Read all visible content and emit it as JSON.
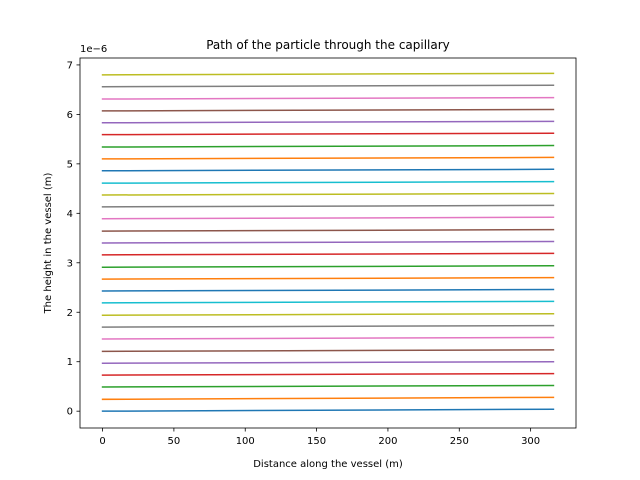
{
  "chart_data": {
    "type": "line",
    "title": "Path of the particle through the capillary",
    "xlabel": "Distance along the vessel (m)",
    "ylabel": "The height in the vessel (m)",
    "y_offset_label": "1e−6",
    "xlim": [
      -15.8,
      331.8
    ],
    "ylim": [
      -0.34,
      7.14
    ],
    "y_unit_scale": 1e-06,
    "x_ticks": [
      0,
      50,
      100,
      150,
      200,
      250,
      300
    ],
    "x_tick_labels": [
      "0",
      "50",
      "100",
      "150",
      "200",
      "250",
      "300"
    ],
    "y_ticks": [
      0,
      1,
      2,
      3,
      4,
      5,
      6,
      7
    ],
    "y_tick_labels": [
      "0",
      "1",
      "2",
      "3",
      "4",
      "5",
      "6",
      "7"
    ],
    "grid": false,
    "legend": "none",
    "x": [
      0,
      316
    ],
    "series": [
      {
        "color": "#1f77b4",
        "values": [
          0.0,
          0.04
        ]
      },
      {
        "color": "#ff7f0e",
        "values": [
          0.24,
          0.28
        ]
      },
      {
        "color": "#2ca02c",
        "values": [
          0.49,
          0.52
        ]
      },
      {
        "color": "#d62728",
        "values": [
          0.73,
          0.76
        ]
      },
      {
        "color": "#9467bd",
        "values": [
          0.97,
          1.0
        ]
      },
      {
        "color": "#8c564b",
        "values": [
          1.21,
          1.24
        ]
      },
      {
        "color": "#e377c2",
        "values": [
          1.46,
          1.49
        ]
      },
      {
        "color": "#7f7f7f",
        "values": [
          1.7,
          1.73
        ]
      },
      {
        "color": "#bcbd22",
        "values": [
          1.94,
          1.97
        ]
      },
      {
        "color": "#17becf",
        "values": [
          2.19,
          2.22
        ]
      },
      {
        "color": "#1f77b4",
        "values": [
          2.43,
          2.46
        ]
      },
      {
        "color": "#ff7f0e",
        "values": [
          2.67,
          2.7
        ]
      },
      {
        "color": "#2ca02c",
        "values": [
          2.91,
          2.94
        ]
      },
      {
        "color": "#d62728",
        "values": [
          3.16,
          3.19
        ]
      },
      {
        "color": "#9467bd",
        "values": [
          3.4,
          3.43
        ]
      },
      {
        "color": "#8c564b",
        "values": [
          3.64,
          3.67
        ]
      },
      {
        "color": "#e377c2",
        "values": [
          3.89,
          3.92
        ]
      },
      {
        "color": "#7f7f7f",
        "values": [
          4.13,
          4.16
        ]
      },
      {
        "color": "#bcbd22",
        "values": [
          4.37,
          4.4
        ]
      },
      {
        "color": "#17becf",
        "values": [
          4.61,
          4.64
        ]
      },
      {
        "color": "#1f77b4",
        "values": [
          4.86,
          4.89
        ]
      },
      {
        "color": "#ff7f0e",
        "values": [
          5.1,
          5.13
        ]
      },
      {
        "color": "#2ca02c",
        "values": [
          5.34,
          5.37
        ]
      },
      {
        "color": "#d62728",
        "values": [
          5.59,
          5.62
        ]
      },
      {
        "color": "#9467bd",
        "values": [
          5.83,
          5.86
        ]
      },
      {
        "color": "#8c564b",
        "values": [
          6.07,
          6.1
        ]
      },
      {
        "color": "#e377c2",
        "values": [
          6.31,
          6.34
        ]
      },
      {
        "color": "#7f7f7f",
        "values": [
          6.56,
          6.59
        ]
      },
      {
        "color": "#bcbd22",
        "values": [
          6.8,
          6.83
        ]
      }
    ]
  }
}
